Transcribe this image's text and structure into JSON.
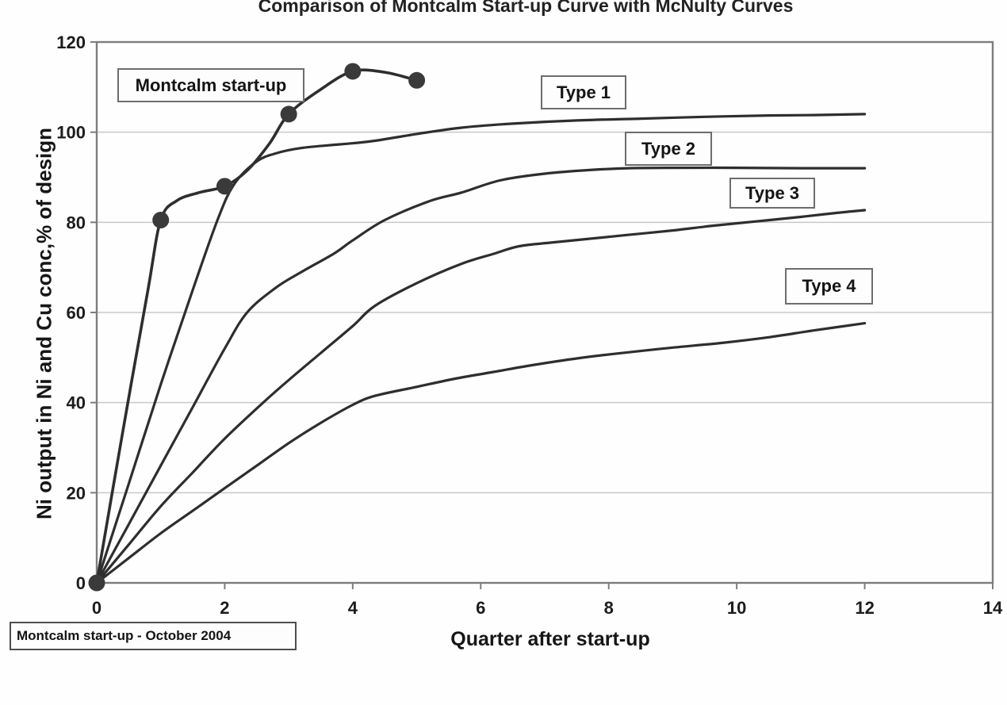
{
  "chart_data": {
    "type": "line",
    "title": "Comparison of Montcalm Start-up Curve with McNulty Curves",
    "xlabel": "Quarter after start-up",
    "ylabel": "Ni output in Ni and Cu conc,% of design",
    "xlim": [
      0,
      14
    ],
    "ylim": [
      0,
      120
    ],
    "x_ticks": [
      0,
      2,
      4,
      6,
      8,
      10,
      12,
      14
    ],
    "y_ticks": [
      0,
      20,
      40,
      60,
      80,
      100,
      120
    ],
    "grid": "horizontal",
    "legend_style": "boxed labels placed beside each curve",
    "annotation": "Montcalm start-up - October 2004",
    "series": [
      {
        "name": "Type 4",
        "markers": false,
        "x": [
          0,
          0.5,
          1,
          1.5,
          2,
          2.5,
          3,
          3.5,
          4,
          4.35,
          5,
          5.6,
          6.2,
          6.8,
          7.5,
          8.2,
          9,
          9.8,
          10.5,
          11.2,
          12
        ],
        "y": [
          0,
          5.5,
          11,
          16,
          21,
          26,
          31,
          35.5,
          39.5,
          41.5,
          43.5,
          45.3,
          46.8,
          48.3,
          49.8,
          51,
          52.2,
          53.3,
          54.5,
          56,
          57.6
        ]
      },
      {
        "name": "Type 3",
        "markers": false,
        "x": [
          0,
          0.5,
          1,
          1.5,
          2,
          2.6,
          3,
          3.5,
          4,
          4.35,
          5,
          5.7,
          6.2,
          6.6,
          7.1,
          7.6,
          8.3,
          9,
          9.6,
          10.3,
          11,
          11.5,
          12
        ],
        "y": [
          0,
          8.5,
          17,
          24.5,
          32,
          40,
          45,
          51,
          57,
          61.5,
          66.5,
          70.8,
          73,
          74.7,
          75.5,
          76.2,
          77.2,
          78.2,
          79.2,
          80.2,
          81.2,
          82,
          82.7
        ]
      },
      {
        "name": "Type 2",
        "markers": false,
        "x": [
          0,
          0.5,
          1,
          1.5,
          2,
          2.35,
          2.8,
          3.2,
          3.7,
          4,
          4.5,
          5.2,
          5.7,
          6.3,
          7,
          7.7,
          8.3,
          9,
          10,
          11,
          12
        ],
        "y": [
          0,
          13,
          26,
          39,
          52,
          60,
          65.5,
          69,
          73,
          76,
          80.5,
          84.7,
          86.6,
          89.3,
          90.8,
          91.6,
          92,
          92.1,
          92.1,
          92,
          92
        ]
      },
      {
        "name": "Type 1",
        "markers": false,
        "x": [
          0,
          0.5,
          1,
          1.5,
          1.9,
          2.15,
          2.5,
          2.8,
          3.2,
          3.8,
          4.3,
          5,
          5.7,
          6.5,
          7.5,
          8.5,
          9.5,
          10.5,
          11.2,
          12
        ],
        "y": [
          0,
          22,
          44,
          65,
          81,
          88.5,
          93.5,
          95.3,
          96.5,
          97.3,
          98,
          99.6,
          101,
          101.9,
          102.6,
          103,
          103.4,
          103.7,
          103.8,
          104
        ]
      },
      {
        "name": "Montcalm start-up",
        "markers": true,
        "x": [
          0,
          0.4,
          0.8,
          1,
          1.25,
          1.6,
          2,
          2.35,
          2.7,
          3,
          3.5,
          4,
          4.5,
          5
        ],
        "y": [
          0,
          33,
          65,
          80.5,
          84.8,
          86.6,
          88,
          91.5,
          97.5,
          104,
          109.5,
          113.5,
          113.3,
          111.5
        ],
        "marker_x": [
          0,
          1,
          2,
          3,
          4,
          5
        ],
        "marker_y": [
          0,
          80.5,
          88,
          104,
          113.5,
          111.5
        ]
      }
    ]
  },
  "colors": {
    "curve": "#2e2e2e",
    "marker": "#3a3a3a",
    "grid": "#c8c8c8",
    "axis": "#7d7d7d",
    "tick_text": "#1c1c1c",
    "background": "#ffffff",
    "box_border": "#6d6d6d"
  }
}
